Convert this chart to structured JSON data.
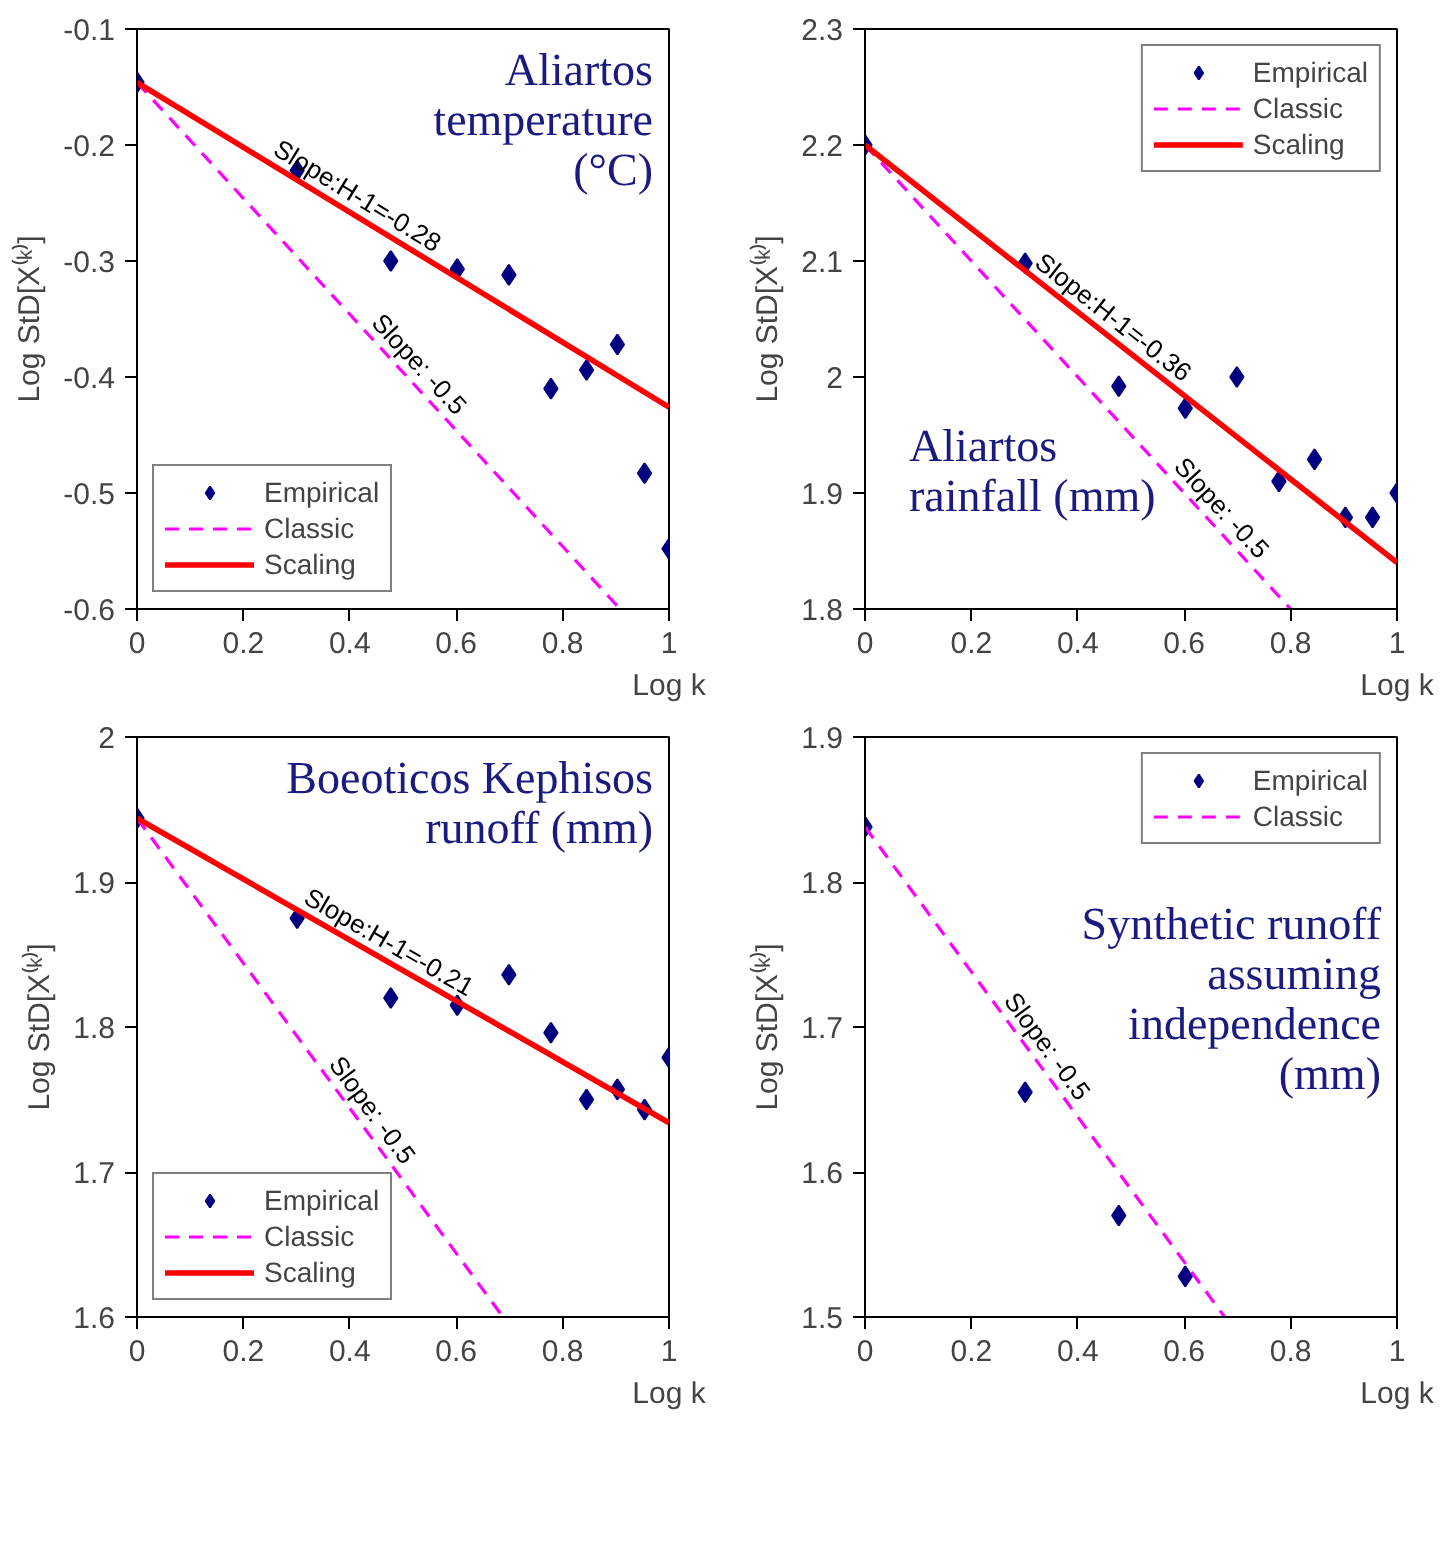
{
  "chart_data": [
    {
      "type": "scatter",
      "title": "Aliartos\ntemperature\n(°C)",
      "xlabel": "Log k",
      "ylabel": "Log StD[X⁽ᵏ⁾]",
      "xlim": [
        0,
        1
      ],
      "ylim": [
        -0.6,
        -0.1
      ],
      "xticks": [
        0,
        0.2,
        0.4,
        0.6,
        0.8,
        1
      ],
      "yticks": [
        -0.6,
        -0.5,
        -0.4,
        -0.3,
        -0.2,
        -0.1
      ],
      "legend": "bottom left",
      "grid": false,
      "series": [
        {
          "name": "Empirical",
          "type": "scatter",
          "marker": "diamond",
          "color": "#000080",
          "x": [
            0,
            0.301,
            0.477,
            0.602,
            0.699,
            0.778,
            0.845,
            0.903,
            0.954,
            1
          ],
          "values": [
            -0.146,
            -0.222,
            -0.3,
            -0.307,
            -0.312,
            -0.41,
            -0.394,
            -0.372,
            -0.483,
            -0.548
          ]
        },
        {
          "name": "Classic",
          "type": "line",
          "line_style": "dashed",
          "color": "#ff00ff",
          "x": [
            0,
            0.908
          ],
          "values": [
            -0.146,
            -0.6
          ]
        },
        {
          "name": "Scaling",
          "type": "line",
          "line_style": "solid",
          "color": "#ff0000",
          "x": [
            0,
            1
          ],
          "values": [
            -0.146,
            -0.426
          ]
        }
      ],
      "annotations": [
        {
          "text": "Slope:H-1=-0.28",
          "x": 0.4,
          "y": -0.258
        },
        {
          "text": "Slope: -0.5",
          "x": 0.51,
          "y": -0.401
        }
      ]
    },
    {
      "type": "scatter",
      "title": "Aliartos\nrainfall (mm)",
      "xlabel": "Log k",
      "ylabel": "Log StD[X⁽ᵏ⁾]",
      "xlim": [
        0,
        1
      ],
      "ylim": [
        1.8,
        2.3
      ],
      "xticks": [
        0,
        0.2,
        0.4,
        0.6,
        0.8,
        1
      ],
      "yticks": [
        1.8,
        1.9,
        2,
        2.1,
        2.2,
        2.3
      ],
      "legend": "top right",
      "grid": false,
      "series": [
        {
          "name": "Empirical",
          "type": "scatter",
          "marker": "diamond",
          "color": "#000080",
          "x": [
            0,
            0.301,
            0.477,
            0.602,
            0.699,
            0.778,
            0.845,
            0.903,
            0.954,
            1
          ],
          "values": [
            2.2,
            2.098,
            1.992,
            1.973,
            2.0,
            1.91,
            1.929,
            1.879,
            1.879,
            1.9
          ]
        },
        {
          "name": "Classic",
          "type": "line",
          "line_style": "dashed",
          "color": "#ff00ff",
          "x": [
            0,
            0.8
          ],
          "values": [
            2.2,
            1.8
          ]
        },
        {
          "name": "Scaling",
          "type": "line",
          "line_style": "solid",
          "color": "#ff0000",
          "x": [
            0,
            1
          ],
          "values": [
            2.2,
            1.84
          ]
        }
      ],
      "annotations": [
        {
          "text": "Slope:H-1=-0.36",
          "x": 0.45,
          "y": 2.038
        },
        {
          "text": "Slope: -0.5",
          "x": 0.65,
          "y": 1.875
        }
      ]
    },
    {
      "type": "scatter",
      "title": "Boeoticos Kephisos\nrunoff (mm)",
      "xlabel": "Log k",
      "ylabel": "Log StD[X⁽ᵏ⁾]",
      "xlim": [
        0,
        1
      ],
      "ylim": [
        1.6,
        2
      ],
      "xticks": [
        0,
        0.2,
        0.4,
        0.6,
        0.8,
        1
      ],
      "yticks": [
        1.6,
        1.7,
        1.8,
        1.9,
        2
      ],
      "legend": "bottom left",
      "grid": false,
      "series": [
        {
          "name": "Empirical",
          "type": "scatter",
          "marker": "diamond",
          "color": "#000080",
          "x": [
            0,
            0.301,
            0.477,
            0.602,
            0.699,
            0.778,
            0.845,
            0.903,
            0.954,
            1
          ],
          "values": [
            1.944,
            1.875,
            1.82,
            1.815,
            1.836,
            1.796,
            1.75,
            1.757,
            1.743,
            1.779
          ]
        },
        {
          "name": "Classic",
          "type": "line",
          "line_style": "dashed",
          "color": "#ff00ff",
          "x": [
            0,
            0.688
          ],
          "values": [
            1.944,
            1.6
          ]
        },
        {
          "name": "Scaling",
          "type": "line",
          "line_style": "solid",
          "color": "#ff0000",
          "x": [
            0,
            1
          ],
          "values": [
            1.944,
            1.734
          ]
        }
      ],
      "annotations": [
        {
          "text": "Slope:H-1=-0.21",
          "x": 0.46,
          "y": 1.847
        },
        {
          "text": "Slope: -0.5",
          "x": 0.42,
          "y": 1.734
        }
      ]
    },
    {
      "type": "scatter",
      "title": "Synthetic runoff\nassuming\nindependence\n(mm)",
      "xlabel": "Log k",
      "ylabel": "Log StD[X⁽ᵏ⁾]",
      "xlim": [
        0,
        1
      ],
      "ylim": [
        1.5,
        1.9
      ],
      "xticks": [
        0,
        0.2,
        0.4,
        0.6,
        0.8,
        1
      ],
      "yticks": [
        1.5,
        1.6,
        1.7,
        1.8,
        1.9
      ],
      "legend": "top right",
      "grid": false,
      "series": [
        {
          "name": "Empirical",
          "type": "scatter",
          "marker": "diamond",
          "color": "#000080",
          "x": [
            0,
            0.301,
            0.477,
            0.602
          ],
          "values": [
            1.838,
            1.655,
            1.57,
            1.528
          ]
        },
        {
          "name": "Classic",
          "type": "line",
          "line_style": "dashed",
          "color": "#ff00ff",
          "x": [
            0,
            0.676
          ],
          "values": [
            1.838,
            1.5
          ]
        }
      ],
      "annotations": [
        {
          "text": "Slope: -0.5",
          "x": 0.32,
          "y": 1.678
        }
      ]
    }
  ]
}
